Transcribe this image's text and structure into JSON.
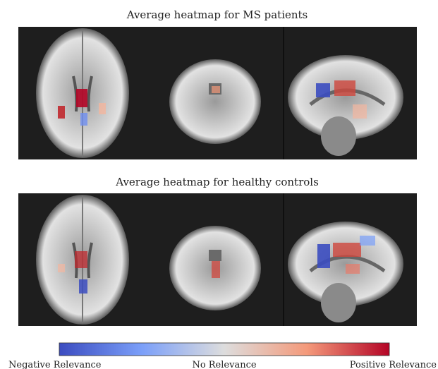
{
  "panels": [
    {
      "title": "Average heatmap for MS patients"
    },
    {
      "title": "Average heatmap for healthy controls"
    }
  ],
  "colorbar": {
    "labels": [
      "Negative Relevance",
      "No Relevance",
      "Positive Relevance"
    ]
  }
}
